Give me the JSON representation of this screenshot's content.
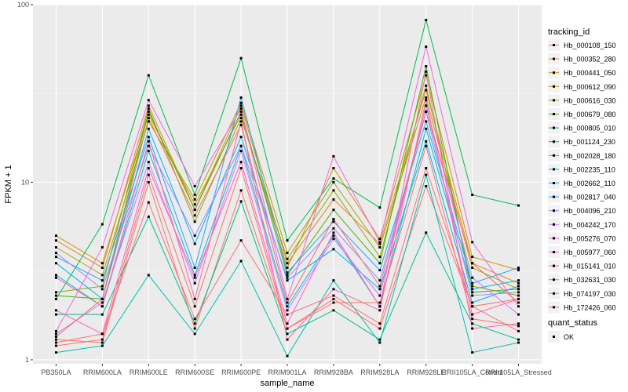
{
  "chart_data": {
    "type": "line",
    "xlabel": "sample_name",
    "ylabel": "FPKM + 1",
    "y_scale": "log10",
    "ylim": [
      0.95,
      100
    ],
    "y_ticks": [
      1,
      10,
      100
    ],
    "y_tick_labels": [
      "1",
      "10",
      "100"
    ],
    "grid": true,
    "legend_placement": "right",
    "categories": [
      "PB350LA",
      "RRIM600LA",
      "RRIM600LE",
      "RRIM600SE",
      "RRIM600PE",
      "RRIM901LA",
      "RRIM928BA",
      "RRIM928LA",
      "RRIM928LE",
      "RRII105LA_Control",
      "RRII105LA_Stressed"
    ],
    "legend_title": "tracking_id",
    "series": [
      {
        "name": "Hb_000108_150",
        "color": "#F8766D",
        "values": [
          1.3,
          1.25,
          10.0,
          1.5,
          9.0,
          1.5,
          2.2,
          1.5,
          9.5,
          2.0,
          2.2
        ]
      },
      {
        "name": "Hb_000352_280",
        "color": "#E7851E",
        "values": [
          4.7,
          3.3,
          27.0,
          7.0,
          27.0,
          3.5,
          8.0,
          4.5,
          33.0,
          3.5,
          2.7
        ]
      },
      {
        "name": "Hb_000441_050",
        "color": "#D09400",
        "values": [
          5.0,
          3.5,
          24.0,
          7.5,
          24.0,
          3.3,
          12.0,
          4.8,
          40.0,
          3.8,
          3.2
        ]
      },
      {
        "name": "Hb_000612_090",
        "color": "#B2A100",
        "values": [
          4.3,
          3.0,
          22.0,
          8.0,
          28.0,
          4.0,
          10.0,
          4.3,
          30.0,
          3.3,
          2.5
        ]
      },
      {
        "name": "Hb_000616_030",
        "color": "#89AC00",
        "values": [
          2.4,
          2.6,
          26.0,
          6.0,
          23.0,
          3.7,
          9.0,
          3.8,
          35.0,
          2.6,
          2.3
        ]
      },
      {
        "name": "Hb_000679_080",
        "color": "#45B500",
        "values": [
          2.3,
          2.2,
          25.0,
          7.0,
          25.0,
          3.0,
          7.0,
          3.5,
          45.0,
          2.4,
          2.5
        ]
      },
      {
        "name": "Hb_000805_010",
        "color": "#00BC51",
        "values": [
          2.2,
          5.8,
          40.0,
          8.5,
          50.0,
          4.7,
          10.5,
          7.2,
          82.0,
          8.5,
          7.4
        ]
      },
      {
        "name": "Hb_001124_230",
        "color": "#00C087",
        "values": [
          1.8,
          1.8,
          6.4,
          1.6,
          7.8,
          1.4,
          1.9,
          1.3,
          5.2,
          1.6,
          1.3
        ]
      },
      {
        "name": "Hb_002028_180",
        "color": "#00C0B2",
        "values": [
          1.1,
          1.2,
          3.0,
          1.4,
          3.6,
          1.05,
          2.8,
          1.25,
          11.0,
          1.1,
          1.25
        ]
      },
      {
        "name": "Hb_002235_110",
        "color": "#00BCD6",
        "values": [
          3.0,
          2.0,
          15.0,
          3.0,
          16.0,
          2.0,
          5.0,
          2.0,
          20.0,
          2.5,
          2.8
        ]
      },
      {
        "name": "Hb_002662_110",
        "color": "#00B3F2",
        "values": [
          3.5,
          2.2,
          20.0,
          4.5,
          18.0,
          2.8,
          4.2,
          2.5,
          17.0,
          2.1,
          2.6
        ]
      },
      {
        "name": "Hb_002817_040",
        "color": "#29A3FF",
        "values": [
          3.8,
          2.8,
          18.0,
          3.3,
          30.0,
          3.1,
          6.0,
          3.2,
          22.0,
          2.7,
          3.3
        ]
      },
      {
        "name": "Hb_004096_210",
        "color": "#9C8DFF",
        "values": [
          4.0,
          2.5,
          16.0,
          5.0,
          16.0,
          2.9,
          5.5,
          2.8,
          25.0,
          2.3,
          2.4
        ]
      },
      {
        "name": "Hb_004242_170",
        "color": "#D277FF",
        "values": [
          1.4,
          2.1,
          13.0,
          2.7,
          15.0,
          1.9,
          4.8,
          2.3,
          27.0,
          2.9,
          1.8
        ]
      },
      {
        "name": "Hb_005276_070",
        "color": "#F166E8",
        "values": [
          1.45,
          4.3,
          29.0,
          9.5,
          26.0,
          2.2,
          14.0,
          4.6,
          58.0,
          4.6,
          2.0
        ]
      },
      {
        "name": "Hb_005977_060",
        "color": "#FF61C7",
        "values": [
          1.9,
          1.4,
          12.0,
          2.9,
          13.0,
          1.6,
          5.2,
          2.0,
          42.0,
          1.5,
          1.6
        ]
      },
      {
        "name": "Hb_015141_010",
        "color": "#FF689F",
        "values": [
          2.9,
          2.0,
          17.0,
          2.2,
          22.0,
          1.3,
          2.5,
          1.9,
          29.0,
          1.8,
          2.2
        ]
      },
      {
        "name": "Hb_032631_030",
        "color": "#FF6E84",
        "values": [
          1.25,
          1.4,
          7.7,
          1.7,
          4.7,
          1.8,
          2.3,
          1.6,
          12.0,
          2.0,
          1.45
        ]
      },
      {
        "name": "Hb_074197_030",
        "color": "#F8766D",
        "values": [
          1.2,
          1.3,
          11.0,
          2.0,
          12.0,
          1.5,
          2.1,
          2.1,
          16.0,
          1.7,
          1.55
        ]
      },
      {
        "name": "Hb_172426_060",
        "color": "#F26F6A",
        "values": [
          1.35,
          2.2,
          23.0,
          6.5,
          21.0,
          2.1,
          6.2,
          2.6,
          25.0,
          3.5,
          2.1
        ]
      }
    ],
    "legend2_title": "quant_status",
    "legend2_items": [
      "OK"
    ]
  }
}
